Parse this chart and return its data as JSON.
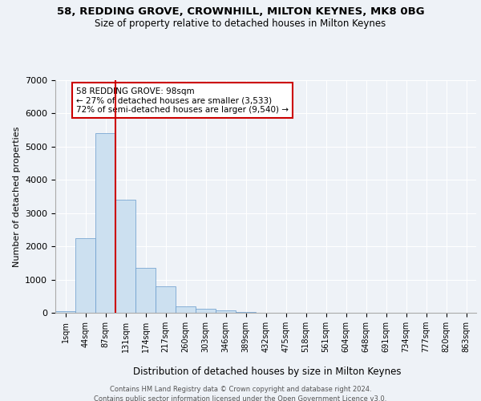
{
  "title1": "58, REDDING GROVE, CROWNHILL, MILTON KEYNES, MK8 0BG",
  "title2": "Size of property relative to detached houses in Milton Keynes",
  "xlabel": "Distribution of detached houses by size in Milton Keynes",
  "ylabel": "Number of detached properties",
  "footer1": "Contains HM Land Registry data © Crown copyright and database right 2024.",
  "footer2": "Contains public sector information licensed under the Open Government Licence v3.0.",
  "bin_labels": [
    "1sqm",
    "44sqm",
    "87sqm",
    "131sqm",
    "174sqm",
    "217sqm",
    "260sqm",
    "303sqm",
    "346sqm",
    "389sqm",
    "432sqm",
    "475sqm",
    "518sqm",
    "561sqm",
    "604sqm",
    "648sqm",
    "691sqm",
    "734sqm",
    "777sqm",
    "820sqm",
    "863sqm"
  ],
  "bar_values": [
    55,
    2250,
    5400,
    3400,
    1350,
    800,
    200,
    120,
    75,
    30,
    10,
    5,
    2,
    1,
    0,
    0,
    0,
    0,
    0,
    0,
    0
  ],
  "bar_color": "#cce0f0",
  "bar_edge_color": "#6699cc",
  "property_value": 98,
  "property_label": "58 REDDING GROVE: 98sqm",
  "pct_smaller": 27,
  "num_smaller": 3533,
  "pct_larger_semi": 72,
  "num_larger_semi": 9540,
  "vline_color": "#cc0000",
  "annotation_box_color": "#cc0000",
  "ylim": [
    0,
    7000
  ],
  "yticks": [
    0,
    1000,
    2000,
    3000,
    4000,
    5000,
    6000,
    7000
  ],
  "background_color": "#eef2f7",
  "grid_color": "#ffffff"
}
